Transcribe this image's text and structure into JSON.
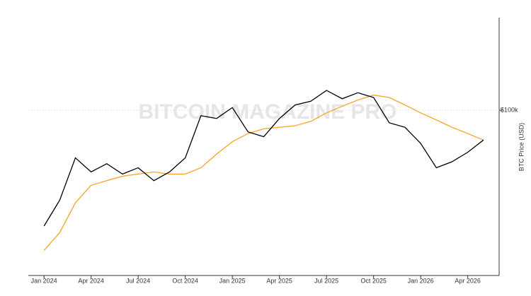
{
  "chart_data": {
    "type": "line",
    "y_label": "BTC Price (USD)",
    "watermark": "BITCOIN MAGAZINE PRO",
    "log_scale": true,
    "x": [
      "2024-01",
      "2024-02",
      "2024-03",
      "2024-04",
      "2024-05",
      "2024-06",
      "2024-07",
      "2024-08",
      "2024-09",
      "2024-10",
      "2024-11",
      "2024-12",
      "2025-01",
      "2025-02",
      "2025-03",
      "2025-04",
      "2025-05",
      "2025-06",
      "2025-07",
      "2025-08",
      "2025-09",
      "2025-10",
      "2025-11",
      "2025-12",
      "2026-01",
      "2026-02",
      "2026-03",
      "2026-04",
      "2026-05"
    ],
    "xticks": [
      {
        "value": "2024-01",
        "label": "Jan 2024"
      },
      {
        "value": "2024-04",
        "label": "Apr 2024"
      },
      {
        "value": "2024-07",
        "label": "Jul 2024"
      },
      {
        "value": "2024-10",
        "label": "Oct 2024"
      },
      {
        "value": "2025-01",
        "label": "Jan 2025"
      },
      {
        "value": "2025-04",
        "label": "Apr 2025"
      },
      {
        "value": "2025-07",
        "label": "Jul 2025"
      },
      {
        "value": "2025-10",
        "label": "Oct 2025"
      },
      {
        "value": "2026-01",
        "label": "Jan 2026"
      },
      {
        "value": "2026-04",
        "label": "Apr 2026"
      }
    ],
    "xlim": [
      "2023-12",
      "2026-06"
    ],
    "ylim": [
      29000,
      200000
    ],
    "yticks": [
      {
        "value": 100000,
        "label": "$100k"
      }
    ],
    "grid": true,
    "series": [
      {
        "color": "#000000",
        "values": [
          42000,
          51000,
          70000,
          63000,
          67000,
          62000,
          65000,
          59000,
          63000,
          70000,
          96000,
          94000,
          102000,
          85000,
          82000,
          94000,
          104000,
          107000,
          116000,
          109000,
          114000,
          110000,
          91000,
          88000,
          78000,
          65000,
          68000,
          73000,
          80000
        ]
      },
      {
        "color": "#f5a623",
        "values": [
          35000,
          40000,
          50000,
          57000,
          59000,
          61000,
          62000,
          63000,
          62000,
          62000,
          65000,
          72000,
          79000,
          84000,
          87000,
          88000,
          89000,
          92000,
          98000,
          103000,
          108000,
          112000,
          110000,
          104000,
          98000,
          93000,
          88000,
          84000,
          80000
        ]
      }
    ]
  }
}
